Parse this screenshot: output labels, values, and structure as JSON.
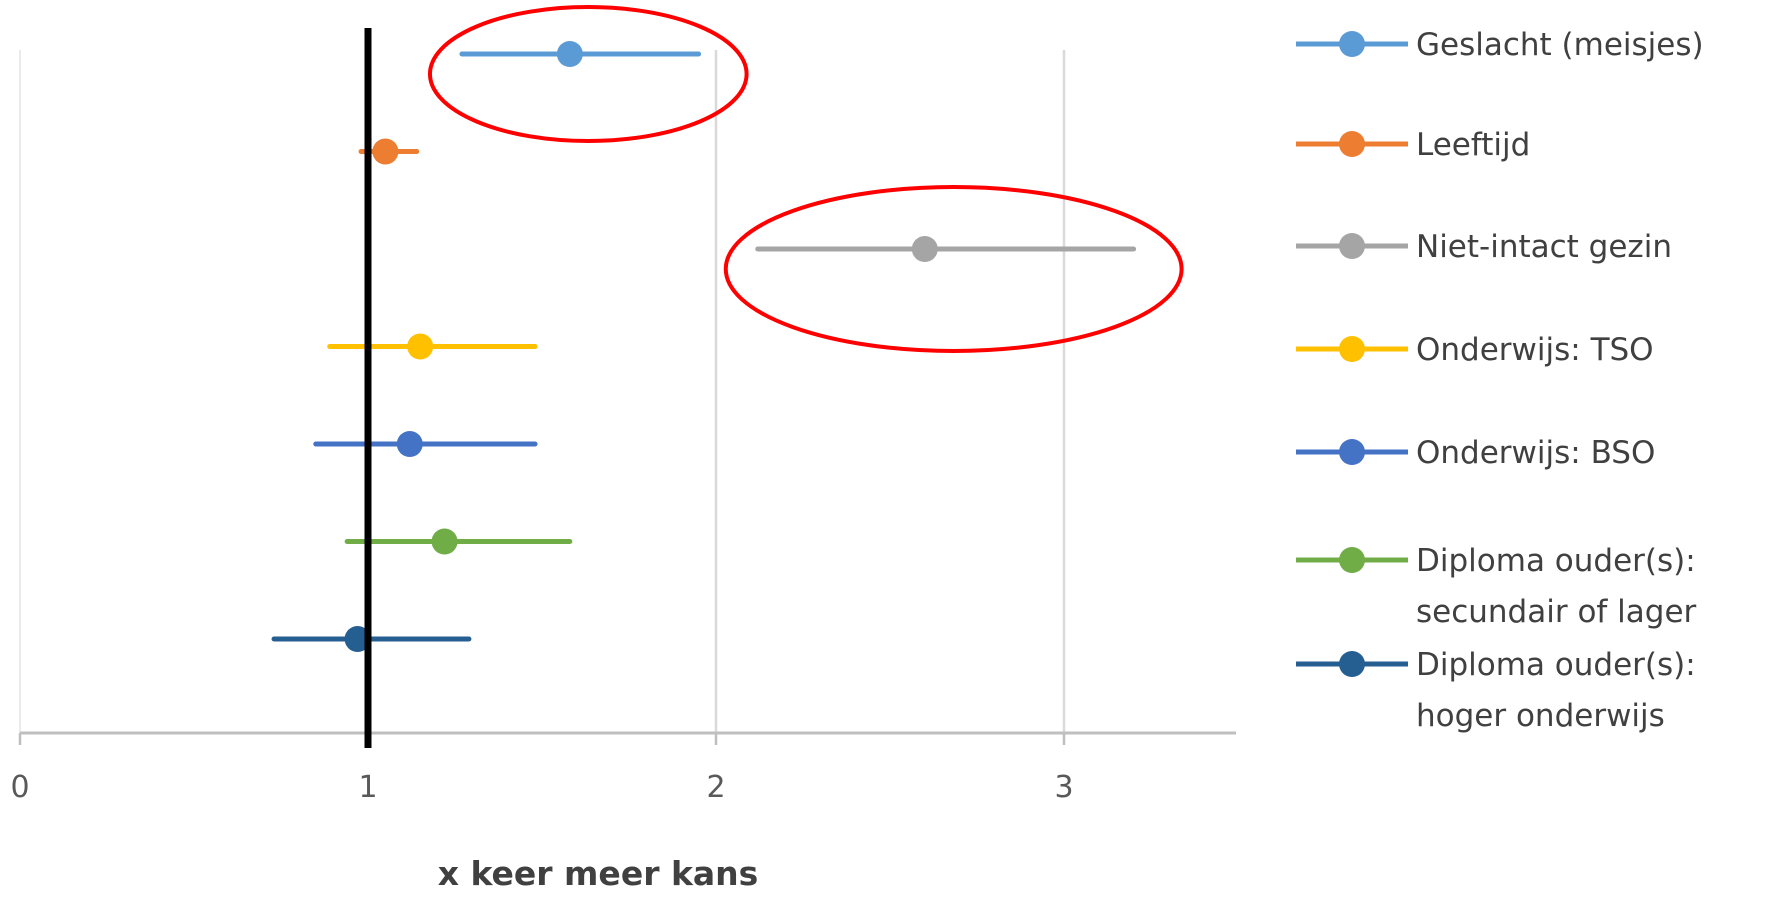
{
  "chart_data": {
    "type": "scatter",
    "subtype": "forest-plot",
    "title": "",
    "xlabel": "x keer meer kans",
    "ylabel": "",
    "xlim": [
      0,
      3.5
    ],
    "xticks": [
      "0",
      "1",
      "2",
      "3"
    ],
    "xtick_values": [
      0,
      1,
      2,
      3
    ],
    "grid": "vertical",
    "reference_line": {
      "x": 1,
      "color": "#000000"
    },
    "legend_position": "right",
    "series": [
      {
        "name": "Geslacht (meisjes)",
        "color": "#5B9BD5",
        "estimate": 1.58,
        "ci": [
          1.27,
          1.95
        ]
      },
      {
        "name": "Leeftijd",
        "color": "#ED7D31",
        "estimate": 1.05,
        "ci": [
          0.98,
          1.14
        ]
      },
      {
        "name": "Niet-intact gezin",
        "color": "#A5A5A5",
        "estimate": 2.6,
        "ci": [
          2.12,
          3.2
        ]
      },
      {
        "name": "Onderwijs: TSO",
        "color": "#FFC000",
        "estimate": 1.15,
        "ci": [
          0.89,
          1.48
        ]
      },
      {
        "name": "Onderwijs: BSO",
        "color": "#4472C4",
        "estimate": 1.12,
        "ci": [
          0.85,
          1.48
        ]
      },
      {
        "name": "Diploma ouder(s): secundair of lager",
        "label_lines": [
          "Diploma ouder(s):",
          "secundair of lager"
        ],
        "color": "#70AD47",
        "estimate": 1.22,
        "ci": [
          0.94,
          1.58
        ]
      },
      {
        "name": "Diploma ouder(s): hoger onderwijs",
        "label_lines": [
          "Diploma ouder(s):",
          "hoger onderwijs"
        ],
        "color": "#255E91",
        "estimate": 0.97,
        "ci": [
          0.73,
          1.29
        ]
      }
    ],
    "annotations": [
      {
        "type": "ellipse",
        "color": "#FF0000",
        "target": "Geslacht (meisjes)"
      },
      {
        "type": "ellipse",
        "color": "#FF0000",
        "target": "Niet-intact gezin"
      }
    ]
  }
}
